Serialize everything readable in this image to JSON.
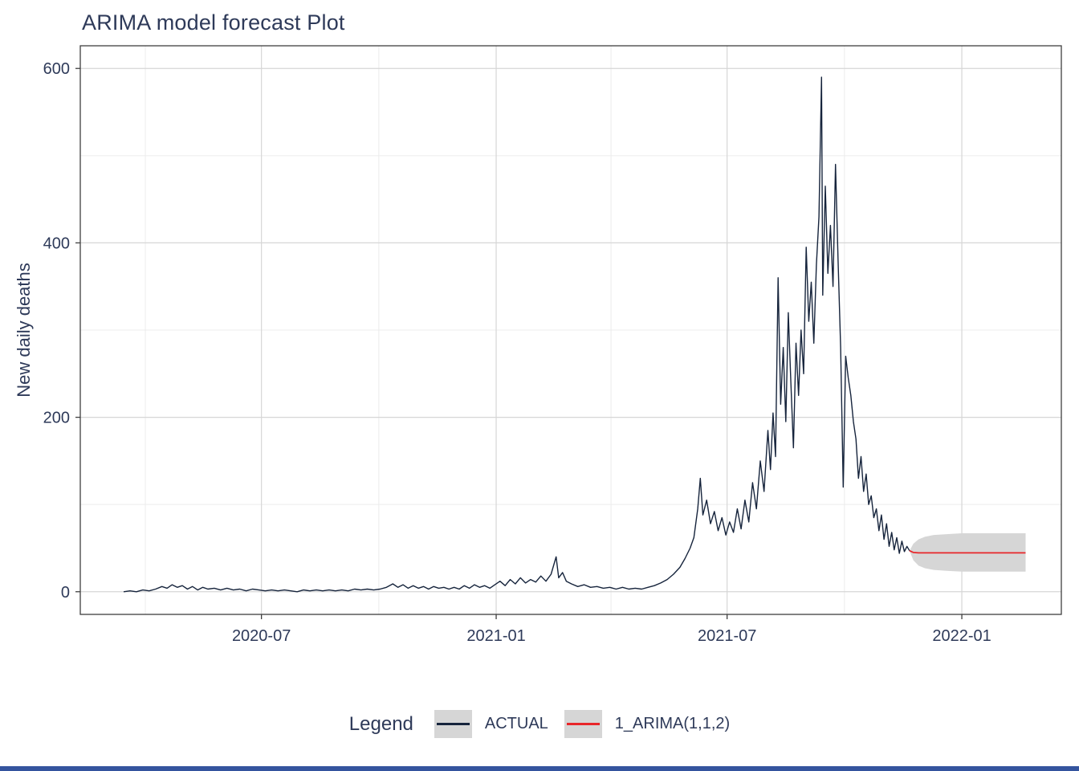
{
  "page": {
    "background": "#ffffff",
    "bottom_bar_color": "#34549e"
  },
  "chart_data": {
    "type": "line",
    "title": "ARIMA model forecast Plot",
    "xlabel": "",
    "ylabel": "New daily deaths",
    "x_domain": [
      "2020-02-10",
      "2022-03-20"
    ],
    "y_domain": [
      -26,
      626
    ],
    "y_ticks": [
      0,
      200,
      400,
      600
    ],
    "y_minor_ticks": [
      100,
      300,
      500
    ],
    "x_ticks": [
      {
        "date": "2020-07-01",
        "label": "2020-07"
      },
      {
        "date": "2021-01-01",
        "label": "2021-01"
      },
      {
        "date": "2021-07-01",
        "label": "2021-07"
      },
      {
        "date": "2022-01-01",
        "label": "2022-01"
      }
    ],
    "x_minor_ticks": [
      "2020-04-01",
      "2020-10-01",
      "2021-04-01",
      "2021-10-01"
    ],
    "grid": true,
    "style": {
      "text": "#2e3a59",
      "grid_major": "#d6d6d6",
      "grid_minor": "#ececec",
      "border": "#3f3f3f",
      "tick": "#3f3f3f"
    },
    "legend": {
      "title": "Legend",
      "position": "bottom",
      "key_bg": "#d6d6d6",
      "entries": [
        {
          "label": "ACTUAL",
          "color": "#16243c"
        },
        {
          "label": "1_ARIMA(1,1,2)",
          "color": "#e8262a"
        }
      ]
    },
    "series": [
      {
        "name": "ACTUAL",
        "color": "#16243c",
        "x": [
          "2020-03-15",
          "2020-03-20",
          "2020-03-25",
          "2020-03-30",
          "2020-04-04",
          "2020-04-09",
          "2020-04-14",
          "2020-04-18",
          "2020-04-22",
          "2020-04-26",
          "2020-04-30",
          "2020-05-04",
          "2020-05-08",
          "2020-05-12",
          "2020-05-16",
          "2020-05-20",
          "2020-05-25",
          "2020-05-30",
          "2020-06-04",
          "2020-06-09",
          "2020-06-14",
          "2020-06-19",
          "2020-06-24",
          "2020-06-29",
          "2020-07-04",
          "2020-07-09",
          "2020-07-14",
          "2020-07-19",
          "2020-07-24",
          "2020-07-29",
          "2020-08-03",
          "2020-08-08",
          "2020-08-13",
          "2020-08-18",
          "2020-08-23",
          "2020-08-28",
          "2020-09-02",
          "2020-09-07",
          "2020-09-12",
          "2020-09-17",
          "2020-09-22",
          "2020-09-27",
          "2020-10-02",
          "2020-10-07",
          "2020-10-12",
          "2020-10-16",
          "2020-10-20",
          "2020-10-24",
          "2020-10-28",
          "2020-11-01",
          "2020-11-05",
          "2020-11-09",
          "2020-11-13",
          "2020-11-17",
          "2020-11-21",
          "2020-11-25",
          "2020-11-29",
          "2020-12-03",
          "2020-12-07",
          "2020-12-11",
          "2020-12-15",
          "2020-12-19",
          "2020-12-23",
          "2020-12-27",
          "2020-12-31",
          "2021-01-04",
          "2021-01-08",
          "2021-01-12",
          "2021-01-16",
          "2021-01-20",
          "2021-01-24",
          "2021-01-28",
          "2021-02-01",
          "2021-02-05",
          "2021-02-09",
          "2021-02-13",
          "2021-02-17",
          "2021-02-19",
          "2021-02-22",
          "2021-02-25",
          "2021-03-01",
          "2021-03-06",
          "2021-03-11",
          "2021-03-16",
          "2021-03-21",
          "2021-03-26",
          "2021-03-31",
          "2021-04-05",
          "2021-04-10",
          "2021-04-15",
          "2021-04-20",
          "2021-04-25",
          "2021-04-30",
          "2021-05-05",
          "2021-05-10",
          "2021-05-15",
          "2021-05-20",
          "2021-05-25",
          "2021-05-29",
          "2021-06-02",
          "2021-06-05",
          "2021-06-08",
          "2021-06-10",
          "2021-06-12",
          "2021-06-15",
          "2021-06-18",
          "2021-06-21",
          "2021-06-24",
          "2021-06-27",
          "2021-06-30",
          "2021-07-03",
          "2021-07-06",
          "2021-07-09",
          "2021-07-12",
          "2021-07-15",
          "2021-07-18",
          "2021-07-21",
          "2021-07-24",
          "2021-07-27",
          "2021-07-30",
          "2021-08-02",
          "2021-08-04",
          "2021-08-06",
          "2021-08-08",
          "2021-08-10",
          "2021-08-12",
          "2021-08-14",
          "2021-08-16",
          "2021-08-18",
          "2021-08-20",
          "2021-08-22",
          "2021-08-24",
          "2021-08-26",
          "2021-08-28",
          "2021-08-30",
          "2021-09-01",
          "2021-09-03",
          "2021-09-05",
          "2021-09-07",
          "2021-09-09",
          "2021-09-11",
          "2021-09-13",
          "2021-09-14",
          "2021-09-16",
          "2021-09-18",
          "2021-09-20",
          "2021-09-22",
          "2021-09-24",
          "2021-09-26",
          "2021-09-28",
          "2021-09-30",
          "2021-10-02",
          "2021-10-04",
          "2021-10-06",
          "2021-10-08",
          "2021-10-10",
          "2021-10-12",
          "2021-10-14",
          "2021-10-16",
          "2021-10-18",
          "2021-10-20",
          "2021-10-22",
          "2021-10-24",
          "2021-10-26",
          "2021-10-28",
          "2021-10-30",
          "2021-11-01",
          "2021-11-03",
          "2021-11-05",
          "2021-11-07",
          "2021-11-09",
          "2021-11-11",
          "2021-11-13",
          "2021-11-15",
          "2021-11-17",
          "2021-11-19",
          "2021-11-21"
        ],
        "values": [
          0,
          1,
          0,
          2,
          1,
          3,
          6,
          4,
          8,
          5,
          7,
          3,
          6,
          2,
          5,
          3,
          4,
          2,
          4,
          2,
          3,
          1,
          3,
          2,
          1,
          2,
          1,
          2,
          1,
          0,
          2,
          1,
          2,
          1,
          2,
          1,
          2,
          1,
          3,
          2,
          3,
          2,
          3,
          5,
          9,
          5,
          8,
          4,
          7,
          4,
          6,
          3,
          6,
          4,
          5,
          3,
          5,
          3,
          7,
          4,
          8,
          5,
          7,
          4,
          8,
          12,
          7,
          14,
          9,
          16,
          10,
          14,
          11,
          18,
          12,
          20,
          40,
          16,
          22,
          12,
          9,
          6,
          8,
          5,
          6,
          4,
          5,
          3,
          5,
          3,
          4,
          3,
          5,
          7,
          10,
          14,
          20,
          28,
          38,
          50,
          62,
          95,
          130,
          88,
          105,
          78,
          92,
          70,
          85,
          65,
          80,
          68,
          95,
          72,
          105,
          80,
          125,
          95,
          150,
          115,
          185,
          140,
          205,
          155,
          360,
          215,
          280,
          195,
          320,
          240,
          165,
          285,
          225,
          300,
          250,
          395,
          310,
          355,
          285,
          375,
          430,
          590,
          340,
          465,
          365,
          420,
          350,
          490,
          380,
          280,
          120,
          270,
          245,
          225,
          195,
          175,
          130,
          155,
          115,
          135,
          100,
          110,
          85,
          95,
          70,
          88,
          60,
          78,
          52,
          68,
          48,
          62,
          44,
          58,
          46,
          52,
          47
        ]
      },
      {
        "name": "1_ARIMA(1,1,2)",
        "color": "#e8262a",
        "ci_color": "#d6d6d6",
        "x": [
          "2021-11-21",
          "2021-11-24",
          "2021-11-28",
          "2021-12-03",
          "2021-12-10",
          "2021-12-20",
          "2022-01-01",
          "2022-01-15",
          "2022-02-01",
          "2022-02-20"
        ],
        "values": [
          47,
          45,
          44.5,
          44.5,
          44.5,
          44.5,
          44.5,
          44.5,
          44.5,
          44.5
        ],
        "ci_lower": [
          47,
          36,
          30,
          27,
          25,
          24,
          23,
          23,
          23,
          23
        ],
        "ci_upper": [
          47,
          55,
          60,
          63,
          65,
          66,
          67,
          67,
          67,
          67
        ]
      }
    ]
  }
}
